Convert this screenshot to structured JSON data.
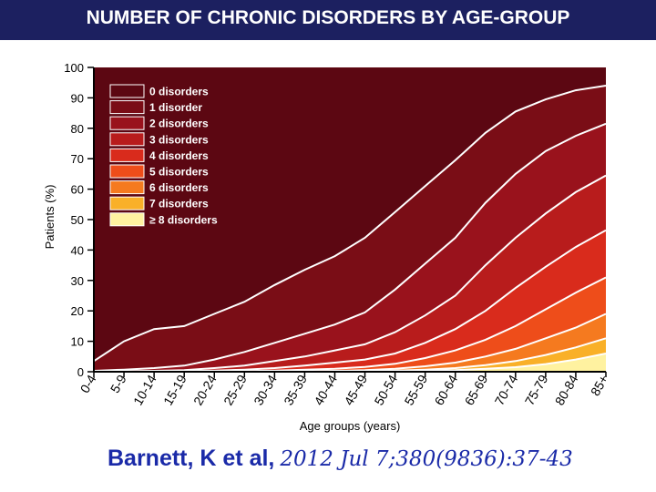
{
  "title": "NUMBER OF CHRONIC DISORDERS BY AGE-GROUP",
  "citation": {
    "author": "Barnett, K et al,",
    "reference": "2012 Jul 7;380(9836):37-43"
  },
  "chart_data": {
    "type": "area",
    "stacked": true,
    "xlabel": "Age groups (years)",
    "ylabel": "Patients (%)",
    "ylim": [
      0,
      100
    ],
    "yticks": [
      "0",
      "10",
      "20",
      "30",
      "40",
      "50",
      "60",
      "70",
      "80",
      "90",
      "100"
    ],
    "categories": [
      "0-4",
      "5-9",
      "10-14",
      "15-19",
      "20-24",
      "25-29",
      "30-34",
      "35-39",
      "40-44",
      "45-49",
      "50-54",
      "55-59",
      "60-64",
      "65-69",
      "70-74",
      "75-79",
      "80-84",
      "85+"
    ],
    "legend": [
      "0 disorders",
      "1 disorder",
      "2 disorders",
      "3 disorders",
      "4 disorders",
      "5 disorders",
      "6 disorders",
      "7 disorders",
      "≥ 8 disorders"
    ],
    "legend_position": "top-left",
    "colors": [
      "#5c0712",
      "#7a0d16",
      "#99121c",
      "#b81c1c",
      "#d92b1c",
      "#ee4d1a",
      "#f57a1f",
      "#f9b028",
      "#fff2a0"
    ],
    "boundaries": [
      [
        3.5,
        10,
        14,
        15,
        19,
        23,
        28.5,
        33.5,
        38,
        44,
        52.5,
        61,
        69.5,
        78.5,
        85.5,
        89.5,
        92.5,
        94
      ],
      [
        0.3,
        0.7,
        1.2,
        2,
        4,
        6.5,
        9.5,
        12.5,
        15.5,
        19.5,
        27,
        35.5,
        44,
        55.5,
        65,
        72.5,
        77.5,
        81.5
      ],
      [
        0.1,
        0.2,
        0.3,
        0.5,
        1.2,
        2,
        3.5,
        5,
        7,
        9,
        13,
        18.5,
        25,
        35,
        44,
        52,
        59,
        64.5
      ],
      [
        0,
        0.1,
        0.1,
        0.2,
        0.4,
        0.7,
        1.2,
        2,
        3,
        4,
        6,
        9.5,
        14,
        20,
        27.5,
        34.5,
        41,
        46.5
      ],
      [
        0,
        0,
        0,
        0.1,
        0.1,
        0.2,
        0.4,
        0.7,
        1,
        1.6,
        2.6,
        4.5,
        7,
        10.5,
        15,
        20.5,
        26,
        31
      ],
      [
        0,
        0,
        0,
        0,
        0,
        0.1,
        0.1,
        0.2,
        0.3,
        0.5,
        1,
        1.8,
        3,
        5,
        7.5,
        11,
        14.5,
        19
      ],
      [
        0,
        0,
        0,
        0,
        0,
        0,
        0,
        0,
        0.1,
        0.2,
        0.4,
        0.7,
        1.2,
        2.2,
        3.5,
        5.5,
        8,
        11
      ],
      [
        0,
        0,
        0,
        0,
        0,
        0,
        0,
        0,
        0,
        0,
        0.1,
        0.3,
        0.5,
        1,
        1.5,
        2.5,
        4,
        6
      ]
    ]
  }
}
